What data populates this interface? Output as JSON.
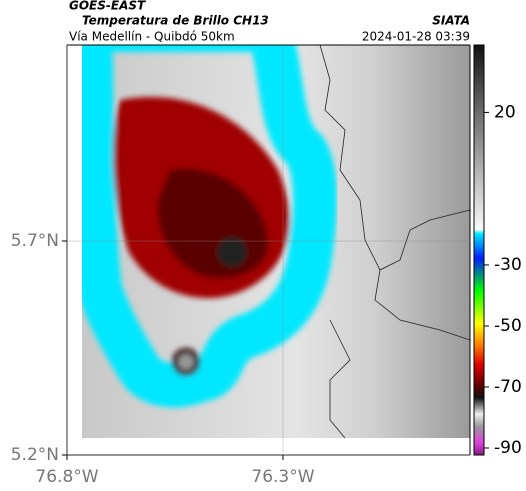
{
  "header": {
    "source": "GOES-EAST",
    "product": "Temperatura de Brillo CH13",
    "region": "Vía Medellín - Quibdó 50km",
    "organization": "SIATA",
    "datetime": "2024-01-28 03:39"
  },
  "map": {
    "xlim": [
      -76.8,
      -75.867
    ],
    "ylim": [
      5.2,
      6.158
    ],
    "xticks": [
      {
        "value": -76.8,
        "label": "76.8°W"
      },
      {
        "value": -76.3,
        "label": "76.3°W"
      }
    ],
    "yticks": [
      {
        "value": 5.2,
        "label": "5.2°N"
      },
      {
        "value": 5.7,
        "label": "5.7°N"
      }
    ],
    "grid": true,
    "colorbar": {
      "lim": [
        -92.3,
        42.1
      ],
      "ticks": [
        20,
        -30,
        -50,
        -70,
        -90
      ]
    }
  }
}
